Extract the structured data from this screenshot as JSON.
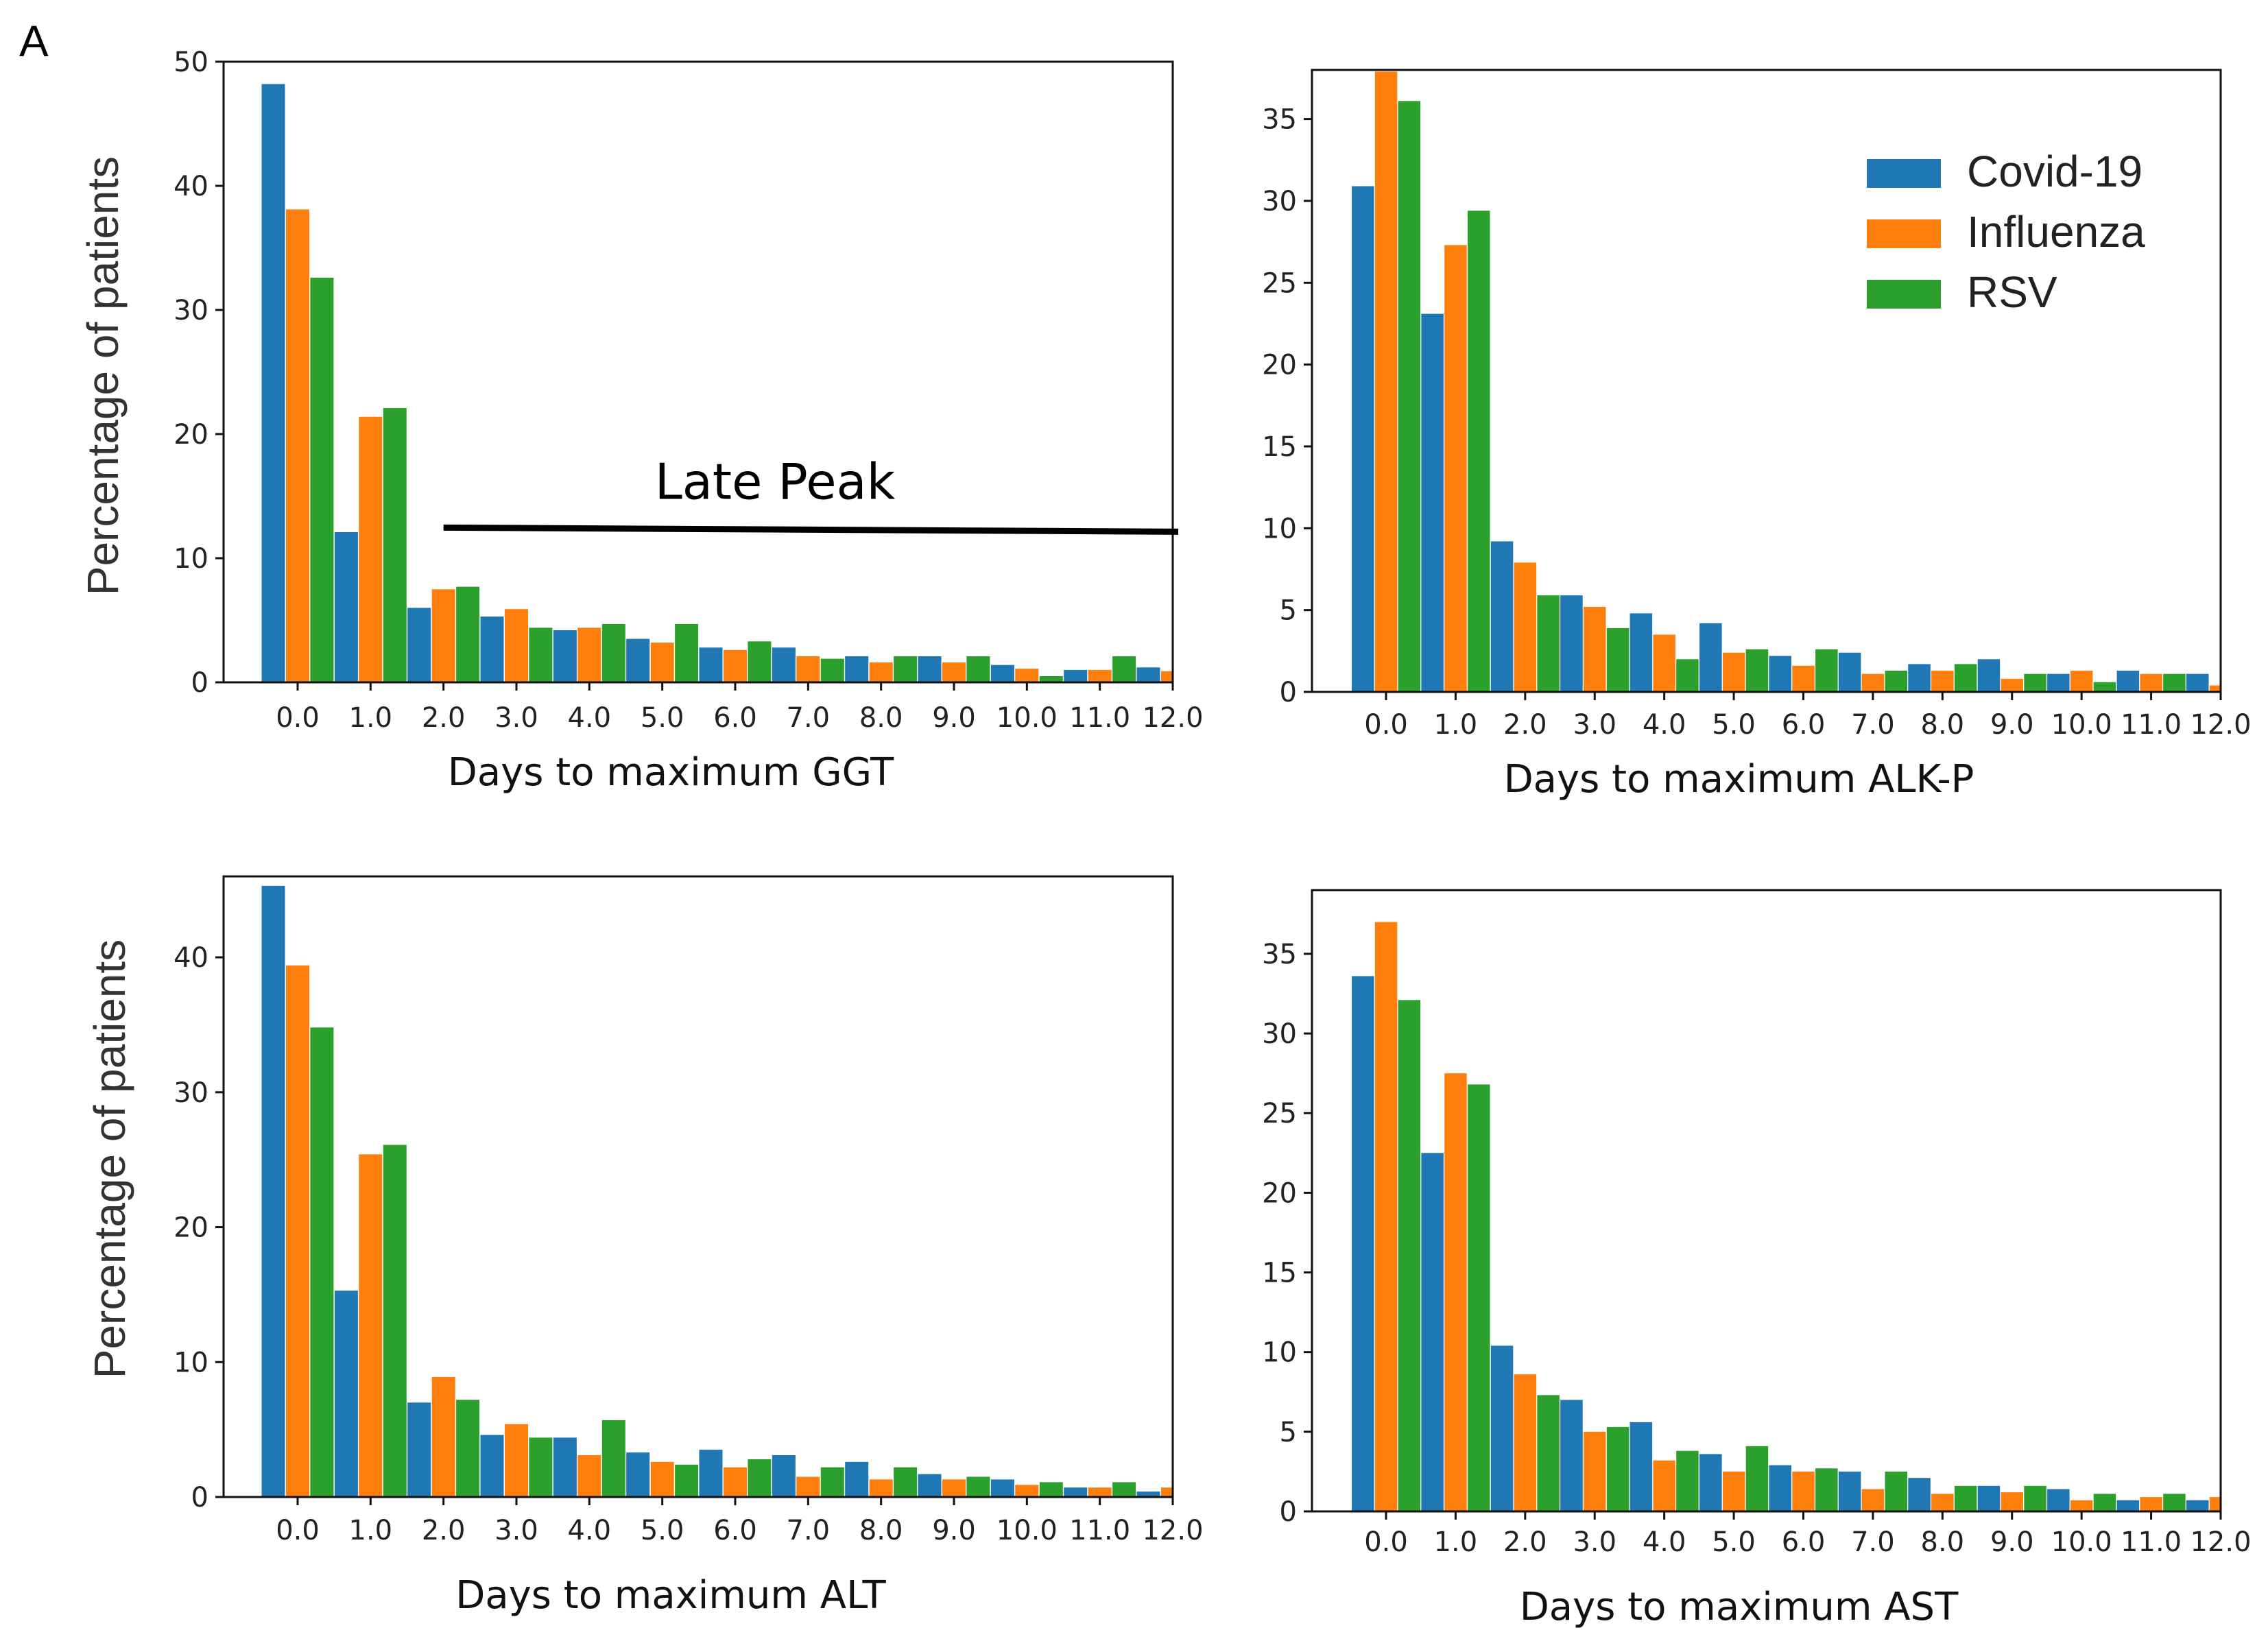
{
  "figure": {
    "panel_label": "A"
  },
  "colors": {
    "Covid-19": "#1f77b4",
    "Influenza": "#ff7f0e",
    "RSV": "#2ca02c"
  },
  "chart_data": [
    {
      "type": "bar",
      "title": "",
      "xlabel": "Days to maximum GGT",
      "ylabel": "Percentage of patients",
      "ylim": [
        0,
        50
      ],
      "yticks": [
        0,
        10,
        20,
        30,
        40,
        50
      ],
      "categories": [
        "0.0",
        "1.0",
        "2.0",
        "3.0",
        "4.0",
        "5.0",
        "6.0",
        "7.0",
        "8.0",
        "9.0",
        "10.0",
        "11.0",
        "12.0"
      ],
      "series": [
        {
          "name": "Covid-19",
          "values": [
            48.2,
            12.1,
            6.0,
            5.3,
            4.2,
            3.5,
            2.8,
            2.8,
            2.1,
            2.1,
            1.4,
            1.0,
            1.2
          ]
        },
        {
          "name": "Influenza",
          "values": [
            38.1,
            21.4,
            7.5,
            5.9,
            4.4,
            3.2,
            2.6,
            2.1,
            1.6,
            1.6,
            1.1,
            1.0,
            0.9
          ]
        },
        {
          "name": "RSV",
          "values": [
            32.6,
            22.1,
            7.7,
            4.4,
            4.7,
            4.7,
            3.3,
            1.9,
            2.1,
            2.1,
            0.5,
            2.1,
            0.0
          ]
        }
      ],
      "annotation": {
        "text": "Late  Peak",
        "y": 12.3
      }
    },
    {
      "type": "bar",
      "title": "",
      "xlabel": "Days to maximum ALK-P",
      "ylabel": "",
      "ylim": [
        0,
        38
      ],
      "yticks": [
        0,
        5,
        10,
        15,
        20,
        25,
        30,
        35
      ],
      "categories": [
        "0.0",
        "1.0",
        "2.0",
        "3.0",
        "4.0",
        "5.0",
        "6.0",
        "7.0",
        "8.0",
        "9.0",
        "10.0",
        "11.0",
        "12.0"
      ],
      "series": [
        {
          "name": "Covid-19",
          "values": [
            30.9,
            23.1,
            9.2,
            5.9,
            4.8,
            4.2,
            2.2,
            2.4,
            1.7,
            2.0,
            1.1,
            1.3,
            1.1
          ]
        },
        {
          "name": "Influenza",
          "values": [
            37.9,
            27.3,
            7.9,
            5.2,
            3.5,
            2.4,
            1.6,
            1.1,
            1.3,
            0.8,
            1.3,
            1.1,
            0.4
          ]
        },
        {
          "name": "RSV",
          "values": [
            36.1,
            29.4,
            5.9,
            3.9,
            2.0,
            2.6,
            2.6,
            1.3,
            1.7,
            1.1,
            0.6,
            1.1,
            0.0
          ]
        }
      ],
      "legend": {
        "position": "top-right",
        "entries": [
          "Covid-19",
          "Influenza",
          "RSV"
        ]
      }
    },
    {
      "type": "bar",
      "title": "",
      "xlabel": "Days to maximum ALT",
      "ylabel": "Percentage of patients",
      "ylim": [
        0,
        46
      ],
      "yticks": [
        0,
        10,
        20,
        30,
        40
      ],
      "categories": [
        "0.0",
        "1.0",
        "2.0",
        "3.0",
        "4.0",
        "5.0",
        "6.0",
        "7.0",
        "8.0",
        "9.0",
        "10.0",
        "11.0",
        "12.0"
      ],
      "series": [
        {
          "name": "Covid-19",
          "values": [
            45.3,
            15.3,
            7.0,
            4.6,
            4.4,
            3.3,
            3.5,
            3.1,
            2.6,
            1.7,
            1.3,
            0.7,
            0.4
          ]
        },
        {
          "name": "Influenza",
          "values": [
            39.4,
            25.4,
            8.9,
            5.4,
            3.1,
            2.6,
            2.2,
            1.5,
            1.3,
            1.3,
            0.9,
            0.7,
            0.7
          ]
        },
        {
          "name": "RSV",
          "values": [
            34.8,
            26.1,
            7.2,
            4.4,
            5.7,
            2.4,
            2.8,
            2.2,
            2.2,
            1.5,
            1.1,
            1.1,
            0.0
          ]
        }
      ]
    },
    {
      "type": "bar",
      "title": "",
      "xlabel": "Days to maximum AST",
      "ylabel": "",
      "ylim": [
        0,
        39
      ],
      "yticks": [
        0,
        5,
        10,
        15,
        20,
        25,
        30,
        35
      ],
      "categories": [
        "0.0",
        "1.0",
        "2.0",
        "3.0",
        "4.0",
        "5.0",
        "6.0",
        "7.0",
        "8.0",
        "9.0",
        "10.0",
        "11.0",
        "12.0"
      ],
      "series": [
        {
          "name": "Covid-19",
          "values": [
            33.6,
            22.5,
            10.4,
            7.0,
            5.6,
            3.6,
            2.9,
            2.5,
            2.1,
            1.6,
            1.4,
            0.7,
            0.7
          ]
        },
        {
          "name": "Influenza",
          "values": [
            37.0,
            27.5,
            8.6,
            5.0,
            3.2,
            2.5,
            2.5,
            1.4,
            1.1,
            1.2,
            0.7,
            0.9,
            0.9
          ]
        },
        {
          "name": "RSV",
          "values": [
            32.1,
            26.8,
            7.3,
            5.3,
            3.8,
            4.1,
            2.7,
            2.5,
            1.6,
            1.6,
            1.1,
            1.1,
            0.0
          ]
        }
      ]
    }
  ]
}
